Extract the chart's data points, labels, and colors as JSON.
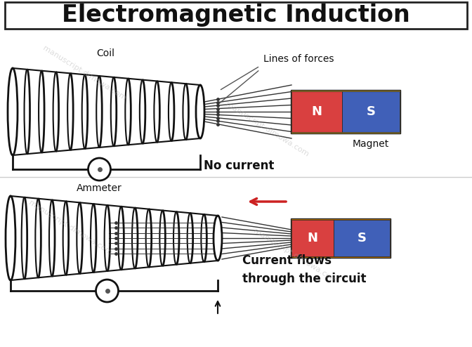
{
  "title": "Electromagnetic Induction",
  "title_fontsize": 24,
  "bg_color": "#ffffff",
  "title_box_color": "#ffffff",
  "title_box_edge": "#222222",
  "coil_color": "#111111",
  "magnet_N_color": "#d94040",
  "magnet_S_color": "#4060b8",
  "magnet_edge_color": "#222222",
  "magnet_outline_color": "#c8a020",
  "wire_color": "#111111",
  "arrow_color": "#cc2222",
  "field_line_color": "#333333",
  "label_color": "#111111",
  "no_current_label": "No current",
  "current_flows_label": "Current flows\nthrough the circuit",
  "coil_label": "Coil",
  "lines_of_forces_label": "Lines of forces",
  "magnet_label": "Magnet",
  "ammeter_label": "Ammeter",
  "N_label": "N",
  "S_label": "S",
  "watermark1": "manuscript.dimowa.com",
  "watermark2": "manuscript.dimowa.com"
}
